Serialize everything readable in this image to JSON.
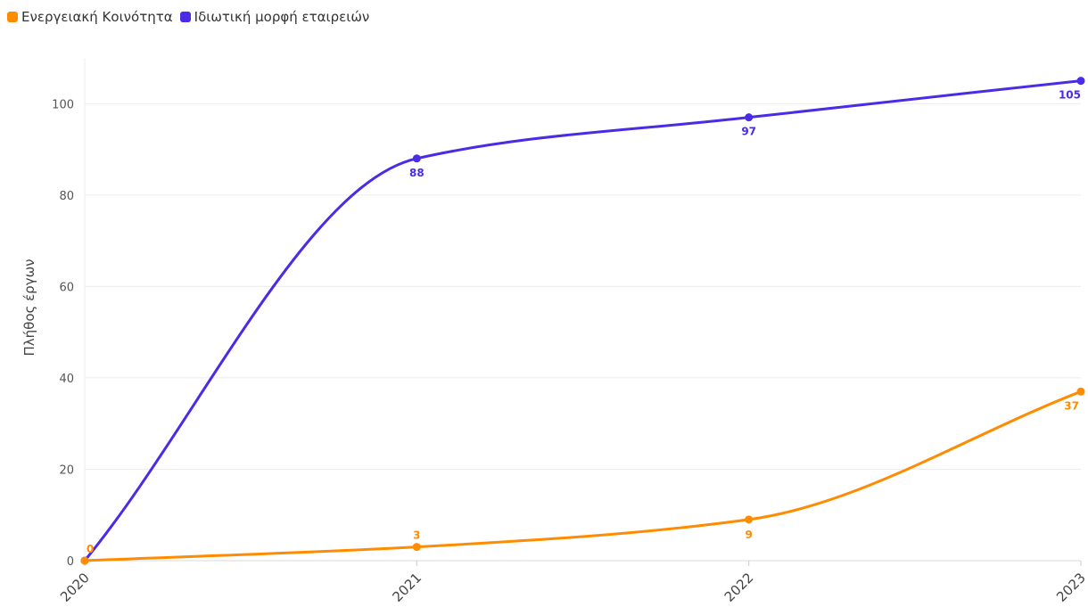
{
  "chart_data": {
    "type": "line",
    "title": "",
    "xlabel": "",
    "ylabel": "Πλήθος έργων",
    "categories": [
      "2020",
      "2021",
      "2022",
      "2023"
    ],
    "yticks": [
      0,
      20,
      40,
      60,
      80,
      100
    ],
    "ylim": [
      0,
      110
    ],
    "grid": true,
    "legend_position": "top-left",
    "series": [
      {
        "name": "Ενεργειακή Κοινότητα",
        "color": "#ff8c00",
        "values": [
          0,
          3,
          9,
          37
        ],
        "labels": [
          "0",
          "3",
          "9",
          "37"
        ]
      },
      {
        "name": "Ιδιωτική μορφή εταιρειών",
        "color": "#4a2be6",
        "values": [
          0,
          88,
          97,
          105
        ],
        "labels": [
          "",
          "88",
          "97",
          "105"
        ]
      }
    ]
  }
}
